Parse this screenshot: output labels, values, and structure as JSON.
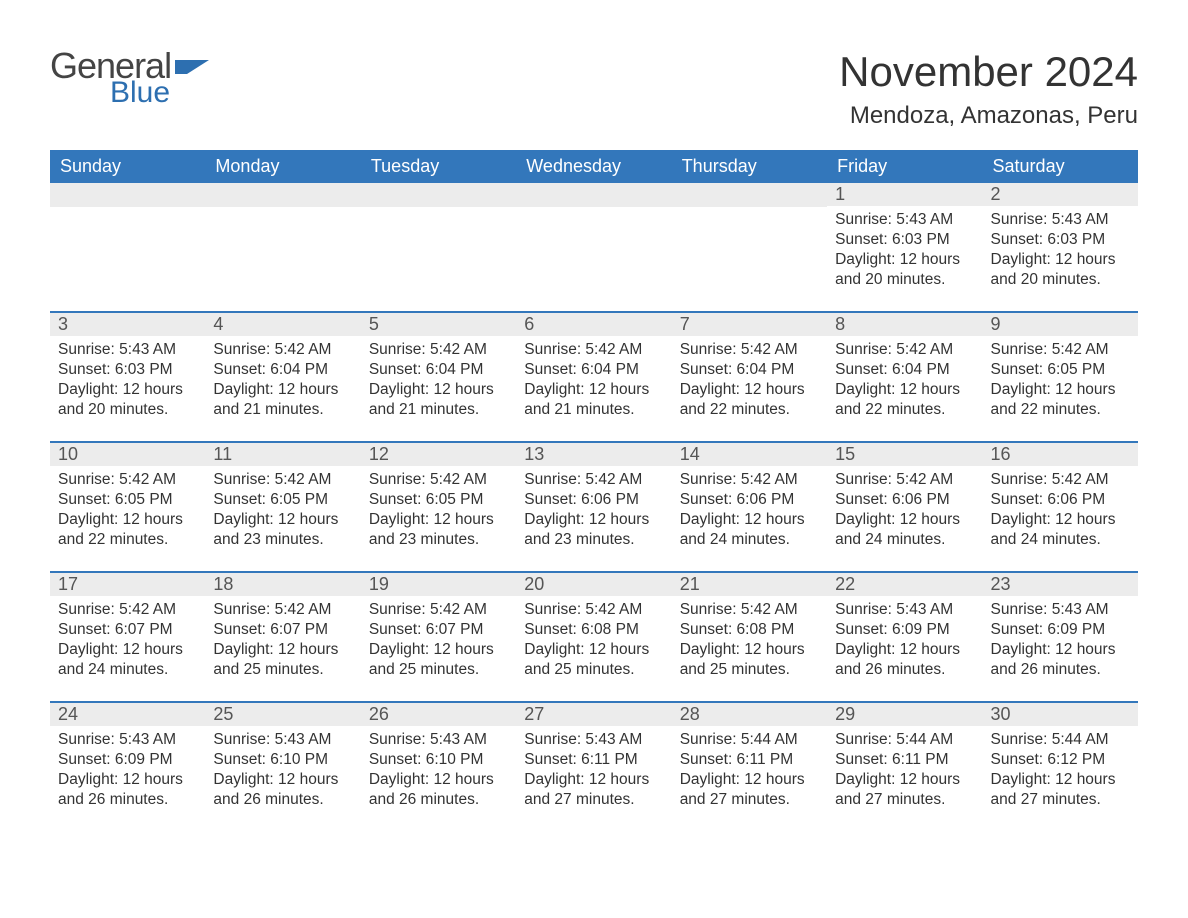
{
  "logo": {
    "text1": "General",
    "text2": "Blue",
    "text1_color": "#444444",
    "text2_color": "#2d6fb0"
  },
  "title": "November 2024",
  "location": "Mendoza, Amazonas, Peru",
  "colors": {
    "header_bg": "#3377bb",
    "header_text": "#ffffff",
    "daynum_bg": "#ececec",
    "row_border": "#3377bb",
    "body_text": "#333333"
  },
  "day_headers": [
    "Sunday",
    "Monday",
    "Tuesday",
    "Wednesday",
    "Thursday",
    "Friday",
    "Saturday"
  ],
  "weeks": [
    [
      null,
      null,
      null,
      null,
      null,
      {
        "n": "1",
        "sunrise": "5:43 AM",
        "sunset": "6:03 PM",
        "daylight": "12 hours and 20 minutes."
      },
      {
        "n": "2",
        "sunrise": "5:43 AM",
        "sunset": "6:03 PM",
        "daylight": "12 hours and 20 minutes."
      }
    ],
    [
      {
        "n": "3",
        "sunrise": "5:43 AM",
        "sunset": "6:03 PM",
        "daylight": "12 hours and 20 minutes."
      },
      {
        "n": "4",
        "sunrise": "5:42 AM",
        "sunset": "6:04 PM",
        "daylight": "12 hours and 21 minutes."
      },
      {
        "n": "5",
        "sunrise": "5:42 AM",
        "sunset": "6:04 PM",
        "daylight": "12 hours and 21 minutes."
      },
      {
        "n": "6",
        "sunrise": "5:42 AM",
        "sunset": "6:04 PM",
        "daylight": "12 hours and 21 minutes."
      },
      {
        "n": "7",
        "sunrise": "5:42 AM",
        "sunset": "6:04 PM",
        "daylight": "12 hours and 22 minutes."
      },
      {
        "n": "8",
        "sunrise": "5:42 AM",
        "sunset": "6:04 PM",
        "daylight": "12 hours and 22 minutes."
      },
      {
        "n": "9",
        "sunrise": "5:42 AM",
        "sunset": "6:05 PM",
        "daylight": "12 hours and 22 minutes."
      }
    ],
    [
      {
        "n": "10",
        "sunrise": "5:42 AM",
        "sunset": "6:05 PM",
        "daylight": "12 hours and 22 minutes."
      },
      {
        "n": "11",
        "sunrise": "5:42 AM",
        "sunset": "6:05 PM",
        "daylight": "12 hours and 23 minutes."
      },
      {
        "n": "12",
        "sunrise": "5:42 AM",
        "sunset": "6:05 PM",
        "daylight": "12 hours and 23 minutes."
      },
      {
        "n": "13",
        "sunrise": "5:42 AM",
        "sunset": "6:06 PM",
        "daylight": "12 hours and 23 minutes."
      },
      {
        "n": "14",
        "sunrise": "5:42 AM",
        "sunset": "6:06 PM",
        "daylight": "12 hours and 24 minutes."
      },
      {
        "n": "15",
        "sunrise": "5:42 AM",
        "sunset": "6:06 PM",
        "daylight": "12 hours and 24 minutes."
      },
      {
        "n": "16",
        "sunrise": "5:42 AM",
        "sunset": "6:06 PM",
        "daylight": "12 hours and 24 minutes."
      }
    ],
    [
      {
        "n": "17",
        "sunrise": "5:42 AM",
        "sunset": "6:07 PM",
        "daylight": "12 hours and 24 minutes."
      },
      {
        "n": "18",
        "sunrise": "5:42 AM",
        "sunset": "6:07 PM",
        "daylight": "12 hours and 25 minutes."
      },
      {
        "n": "19",
        "sunrise": "5:42 AM",
        "sunset": "6:07 PM",
        "daylight": "12 hours and 25 minutes."
      },
      {
        "n": "20",
        "sunrise": "5:42 AM",
        "sunset": "6:08 PM",
        "daylight": "12 hours and 25 minutes."
      },
      {
        "n": "21",
        "sunrise": "5:42 AM",
        "sunset": "6:08 PM",
        "daylight": "12 hours and 25 minutes."
      },
      {
        "n": "22",
        "sunrise": "5:43 AM",
        "sunset": "6:09 PM",
        "daylight": "12 hours and 26 minutes."
      },
      {
        "n": "23",
        "sunrise": "5:43 AM",
        "sunset": "6:09 PM",
        "daylight": "12 hours and 26 minutes."
      }
    ],
    [
      {
        "n": "24",
        "sunrise": "5:43 AM",
        "sunset": "6:09 PM",
        "daylight": "12 hours and 26 minutes."
      },
      {
        "n": "25",
        "sunrise": "5:43 AM",
        "sunset": "6:10 PM",
        "daylight": "12 hours and 26 minutes."
      },
      {
        "n": "26",
        "sunrise": "5:43 AM",
        "sunset": "6:10 PM",
        "daylight": "12 hours and 26 minutes."
      },
      {
        "n": "27",
        "sunrise": "5:43 AM",
        "sunset": "6:11 PM",
        "daylight": "12 hours and 27 minutes."
      },
      {
        "n": "28",
        "sunrise": "5:44 AM",
        "sunset": "6:11 PM",
        "daylight": "12 hours and 27 minutes."
      },
      {
        "n": "29",
        "sunrise": "5:44 AM",
        "sunset": "6:11 PM",
        "daylight": "12 hours and 27 minutes."
      },
      {
        "n": "30",
        "sunrise": "5:44 AM",
        "sunset": "6:12 PM",
        "daylight": "12 hours and 27 minutes."
      }
    ]
  ],
  "labels": {
    "sunrise": "Sunrise: ",
    "sunset": "Sunset: ",
    "daylight": "Daylight: "
  }
}
